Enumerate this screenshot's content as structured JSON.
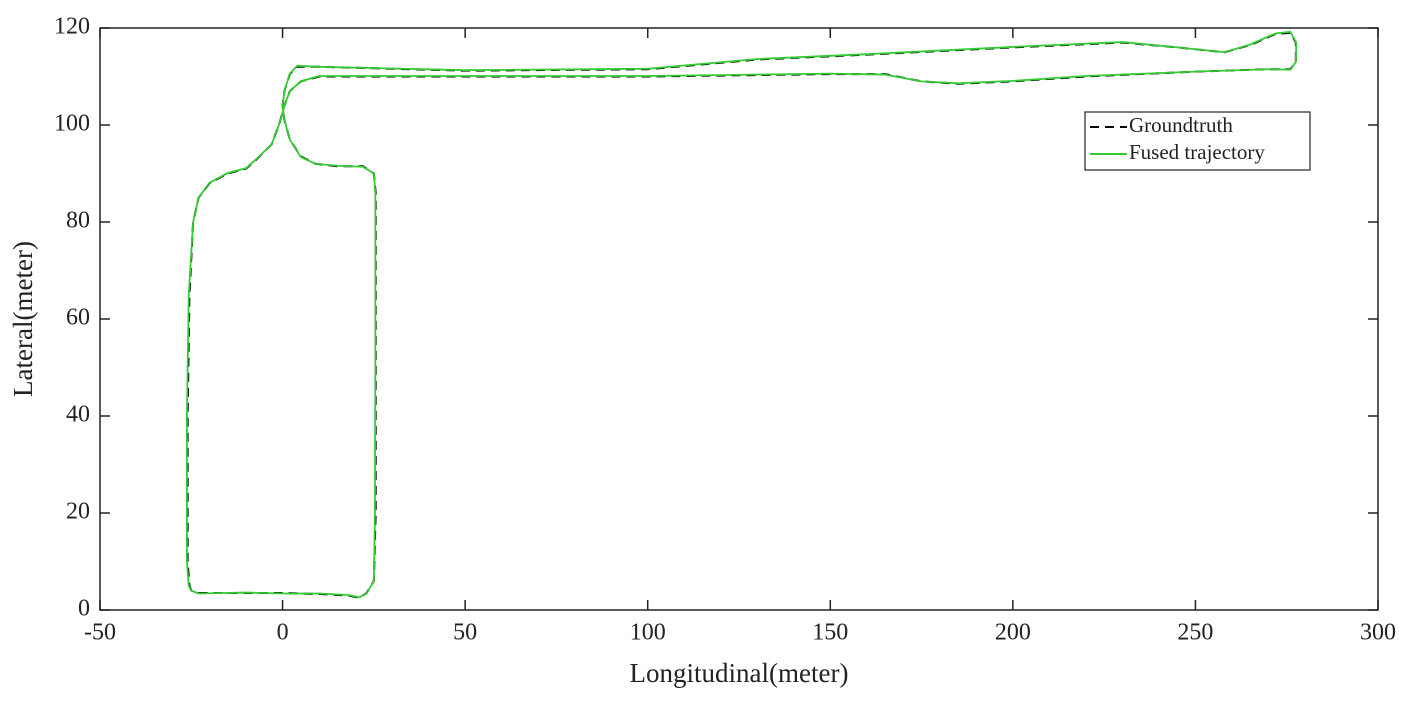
{
  "chart_data": {
    "type": "line",
    "x_label": "Longitudinal(meter)",
    "y_label": "Lateral(meter)",
    "xlim": [
      -50,
      300
    ],
    "xticks": [
      -50,
      0,
      50,
      100,
      150,
      200,
      250,
      300
    ],
    "ylim": [
      0,
      120
    ],
    "yticks": [
      0,
      20,
      40,
      60,
      80,
      100,
      120
    ],
    "legend": "upper right",
    "series": [
      {
        "name": "Groundtruth",
        "color": "#000000",
        "line_style": "dashed",
        "x": [
          -23,
          -10,
          0,
          10,
          18,
          21,
          23,
          25,
          25.5,
          25.5,
          25.5,
          25,
          22,
          15,
          9,
          5,
          2,
          0.5,
          0,
          0.5,
          2,
          4,
          10,
          50,
          100,
          130,
          160,
          200,
          230,
          245,
          258,
          265,
          272,
          276,
          277.5,
          277.5,
          276,
          270,
          250,
          220,
          200,
          185,
          175,
          165,
          150,
          100,
          50,
          10,
          5,
          2,
          0.5,
          -1,
          -3,
          -7,
          -10,
          -15,
          -20,
          -23,
          -24.5,
          -25.5,
          -26,
          -26,
          -25.5,
          -25,
          -23
        ],
        "values": [
          3.5,
          3.5,
          3.5,
          3.3,
          3,
          2.5,
          3.5,
          6,
          20,
          50,
          86,
          90,
          91.5,
          91.5,
          92,
          93.5,
          97,
          101,
          104,
          107,
          110.5,
          112,
          112,
          111.2,
          111.5,
          113.5,
          114.5,
          116,
          117,
          116,
          115,
          116.5,
          118.8,
          119,
          117,
          113,
          111.5,
          111.5,
          111,
          110,
          109,
          108.5,
          109,
          110.5,
          110.5,
          110,
          110,
          110,
          109,
          107,
          104,
          100,
          96,
          93,
          91,
          90,
          88,
          85,
          80,
          65,
          40,
          10,
          5,
          4,
          3.5
        ]
      },
      {
        "name": "Fused trajectory",
        "color": "#33cc33",
        "line_style": "solid",
        "x": [
          -23,
          -10,
          0,
          10,
          18,
          21,
          23,
          25,
          25.3,
          25.4,
          25.4,
          25,
          22,
          15,
          9,
          5,
          2,
          0.5,
          0,
          0.5,
          2,
          4,
          10,
          50,
          100,
          130,
          160,
          200,
          230,
          245,
          258,
          265,
          272,
          276,
          277.6,
          277.5,
          276,
          270,
          250,
          220,
          200,
          185,
          175,
          165,
          150,
          100,
          50,
          10,
          5,
          2,
          0.5,
          -1,
          -3,
          -7,
          -10,
          -15,
          -20,
          -23,
          -24.5,
          -25.7,
          -26.2,
          -26.2,
          -25.7,
          -25,
          -23
        ],
        "values": [
          3.4,
          3.6,
          3.4,
          3.4,
          3.1,
          2.6,
          3.4,
          6,
          20,
          50,
          86,
          90,
          91.4,
          91.6,
          92,
          93.4,
          97,
          101,
          104,
          107,
          110.6,
          112.2,
          112,
          111.3,
          111.6,
          113.6,
          114.6,
          116.1,
          117.1,
          116,
          115,
          116.6,
          118.9,
          119.2,
          117,
          113,
          111.4,
          111.5,
          111,
          110.1,
          109.1,
          108.6,
          109,
          110.4,
          110.6,
          110.1,
          110.1,
          110.1,
          109,
          107,
          104,
          100,
          96,
          93.1,
          91.1,
          90.1,
          88.1,
          85,
          80,
          65,
          40,
          10,
          5,
          4,
          3.4
        ]
      }
    ]
  }
}
